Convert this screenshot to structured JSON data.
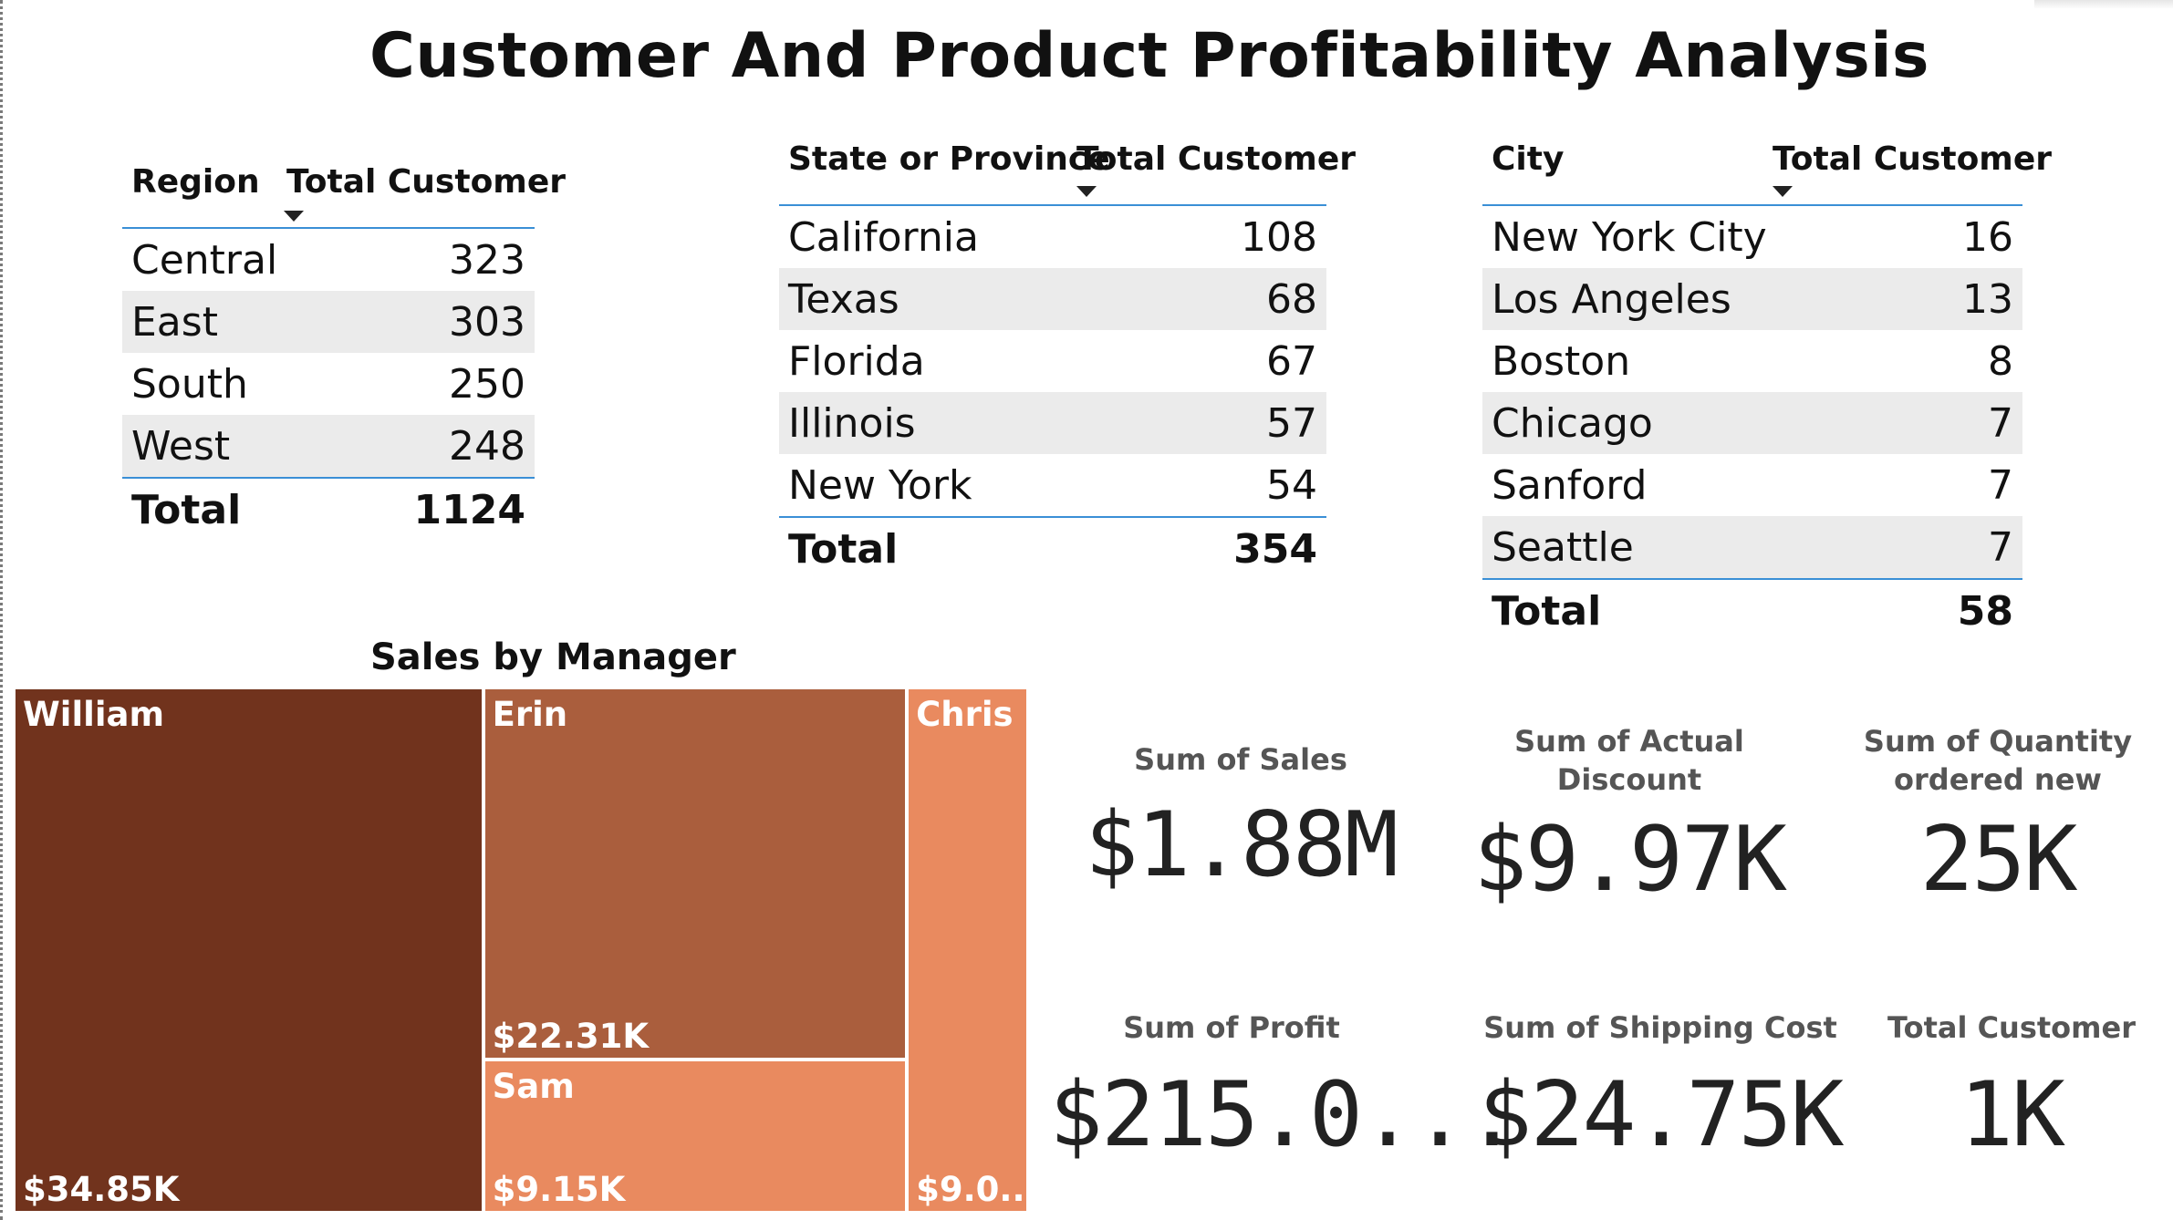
{
  "report": {
    "title": "Customer And Product Profitability Analysis"
  },
  "region_table": {
    "headers": [
      "Region",
      "Total Customer"
    ],
    "rows": [
      {
        "name": "Central",
        "value": "323"
      },
      {
        "name": "East",
        "value": "303"
      },
      {
        "name": "South",
        "value": "250"
      },
      {
        "name": "West",
        "value": "248"
      }
    ],
    "total": {
      "label": "Total",
      "value": "1124"
    }
  },
  "state_table": {
    "headers": [
      "State or Province",
      "Total Customer"
    ],
    "rows": [
      {
        "name": "California",
        "value": "108"
      },
      {
        "name": "Texas",
        "value": "68"
      },
      {
        "name": "Florida",
        "value": "67"
      },
      {
        "name": "Illinois",
        "value": "57"
      },
      {
        "name": "New York",
        "value": "54"
      }
    ],
    "total": {
      "label": "Total",
      "value": "354"
    }
  },
  "city_table": {
    "headers": [
      "City",
      "Total Customer"
    ],
    "rows": [
      {
        "name": "New York City",
        "value": "16"
      },
      {
        "name": "Los Angeles",
        "value": "13"
      },
      {
        "name": "Boston",
        "value": "8"
      },
      {
        "name": "Chicago",
        "value": "7"
      },
      {
        "name": "Sanford",
        "value": "7"
      },
      {
        "name": "Seattle",
        "value": "7"
      }
    ],
    "total": {
      "label": "Total",
      "value": "58"
    }
  },
  "chart_data": {
    "type": "treemap",
    "title": "Sales by Manager",
    "items": [
      {
        "name": "William",
        "value": 34850,
        "label": "$34.85K",
        "color": "#71331d"
      },
      {
        "name": "Erin",
        "value": 22310,
        "label": "$22.31K",
        "color": "#aa5e3d"
      },
      {
        "name": "Sam",
        "value": 9150,
        "label": "$9.15K",
        "color": "#e98a5f"
      },
      {
        "name": "Chris",
        "value": 9000,
        "label": "$9.0...",
        "color": "#e98a5f"
      }
    ]
  },
  "cards": {
    "sales": {
      "label": "Sum of Sales",
      "value": "$1.88M"
    },
    "discount": {
      "label_line1": "Sum of Actual",
      "label_line2": "Discount",
      "value": "$9.97K"
    },
    "quantity": {
      "label_line1": "Sum of Quantity",
      "label_line2": "ordered new",
      "value": "25K"
    },
    "profit": {
      "label": "Sum of Profit",
      "value": "$215.0..."
    },
    "shipping": {
      "label": "Sum of Shipping Cost",
      "value": "$24.75K"
    },
    "customers": {
      "label": "Total Customer",
      "value": "1K"
    }
  },
  "colors": {
    "header_line": "#3a8fd6",
    "alt_row": "#ebebeb"
  }
}
